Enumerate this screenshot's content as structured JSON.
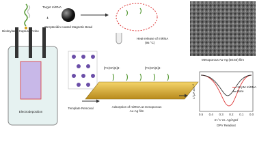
{
  "labels": {
    "capture_probe": "Biotinylated Capture Probe",
    "target": "Target miRNA",
    "bead": "Streptavidin-coated Magnetic Bead",
    "heat": "Heat-release of miRNA",
    "heat_temp": "(95 °C)",
    "sem_caption": "Mesoporous Au-Ag (50:50) film",
    "ferricyanide": "[Fe(CN)6]3-",
    "ferrocyanide": "[Fe(CN)6]4-",
    "template_removal": "Template Removal",
    "electrodeposition": "Electrodeposition",
    "adsorption": "Adsorption of miRNA at mesoporous",
    "adsorption_2": "Au-Ag film",
    "dpv_readout": "DPV Readout"
  },
  "plot": {
    "y_label": "I / μA cm⁻²",
    "x_label": "E / V vs. Ag/AgCl",
    "legend": [
      "10 pM miRNA",
      "Bare"
    ],
    "xticks": [
      "0.5",
      "0.4",
      "0.3",
      "0.2",
      "0.1",
      "0.0"
    ]
  }
}
